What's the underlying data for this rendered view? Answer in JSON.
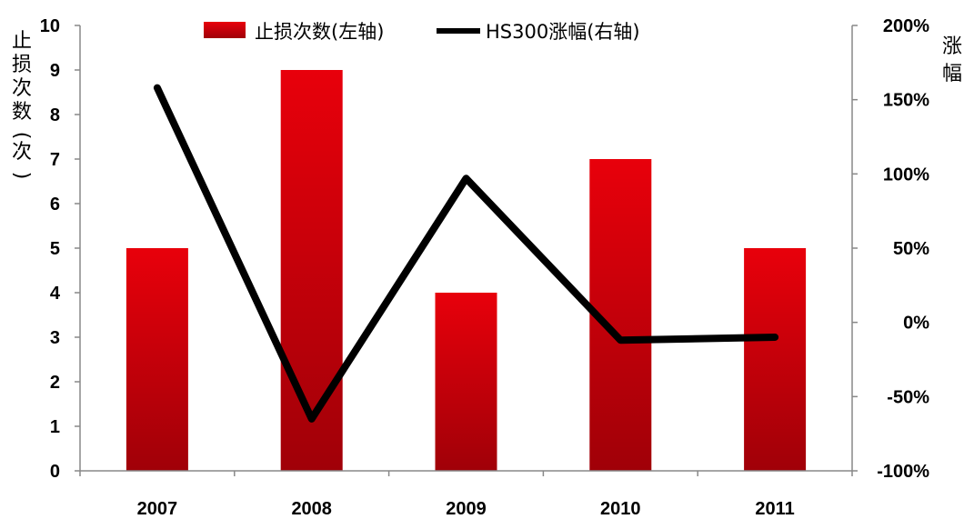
{
  "chart_data": {
    "type": "bar",
    "categories": [
      "2007",
      "2008",
      "2009",
      "2010",
      "2011"
    ],
    "series": [
      {
        "name": "止损次数(左轴)",
        "type": "bar",
        "axis": "left",
        "values": [
          5,
          9,
          4,
          7,
          5
        ]
      },
      {
        "name": "HS300涨幅(右轴)",
        "type": "line",
        "axis": "right",
        "values": [
          1.58,
          -0.65,
          0.97,
          -0.12,
          -0.1
        ]
      }
    ],
    "left_axis": {
      "title": "止损次数(次)",
      "ylim": [
        0,
        10
      ],
      "ticks": [
        "0",
        "1",
        "2",
        "3",
        "4",
        "5",
        "6",
        "7",
        "8",
        "9",
        "10"
      ]
    },
    "right_axis": {
      "title": "涨幅",
      "ylim": [
        -1.0,
        2.0
      ],
      "ticks": [
        "-100%",
        "-50%",
        "0%",
        "50%",
        "100%",
        "150%",
        "200%"
      ]
    },
    "grid": false,
    "legend_position": "top-center",
    "colors": {
      "bar_top": "#e8000b",
      "bar_bottom": "#a00008",
      "line": "#000000",
      "axis": "#888888"
    }
  }
}
